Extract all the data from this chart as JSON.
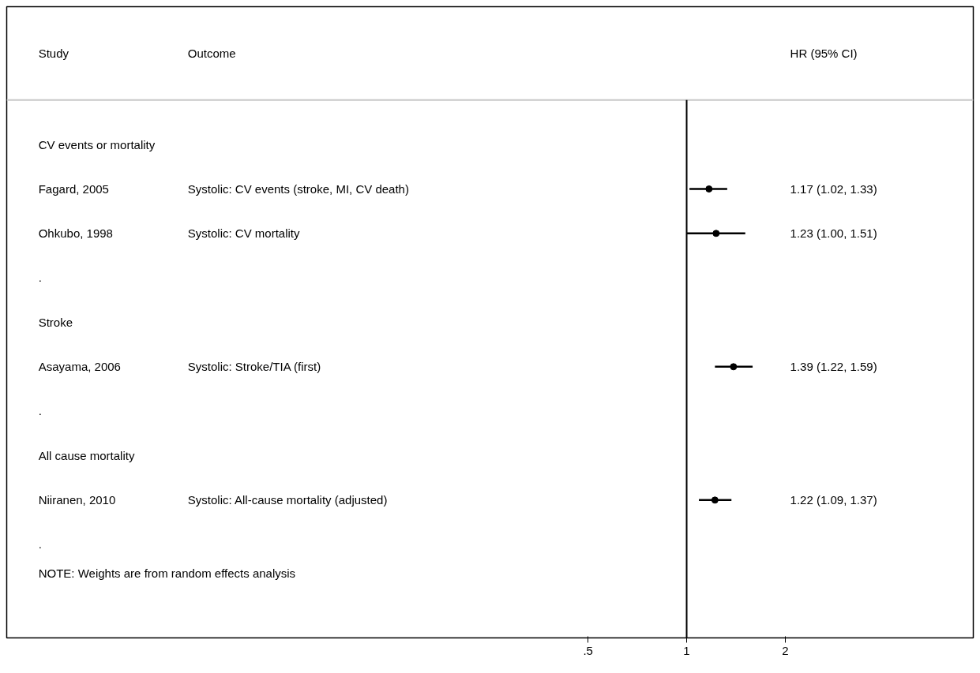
{
  "chart_data": {
    "type": "scatter",
    "orientation": "horizontal",
    "categories": [
      "CV events or mortality",
      "Fagard, 2005",
      "Ohkubo, 1998",
      ".",
      "Stroke",
      "Asayama, 2006",
      ".",
      "All cause mortality",
      "Niiranen, 2010",
      "."
    ],
    "values": [
      null,
      1.17,
      1.23,
      null,
      null,
      1.39,
      null,
      null,
      1.22,
      null
    ],
    "errors": [
      null,
      [
        1.02,
        1.33
      ],
      [
        1.0,
        1.51
      ],
      null,
      null,
      [
        1.22,
        1.59
      ],
      null,
      null,
      [
        1.09,
        1.37
      ],
      null
    ],
    "color": "#000000",
    "marker": "circle",
    "log": "x",
    "grid": false,
    "tick_labels": "x",
    "xlim": [
      0.0084,
      7.5
    ],
    "xticks": [
      {
        "value": 0.5,
        "label": ".5"
      },
      1,
      2
    ],
    "ref_lines": [
      {
        "axis": "x",
        "value": 1,
        "color": "#000000"
      }
    ],
    "annotations": [
      "Study",
      "Outcome",
      "HR (95% CI)",
      "Systolic: CV events (stroke, MI, CV death)",
      "Systolic: CV mortality",
      "Systolic: Stroke/TIA (first)",
      "Systolic: All-cause mortality (adjusted)",
      "1.17 (1.02, 1.33)",
      "1.23 (1.00, 1.51)",
      "1.39 (1.22, 1.59)",
      "1.22 (1.09, 1.37)",
      "NOTE: Weights are from random effects analysis"
    ]
  }
}
